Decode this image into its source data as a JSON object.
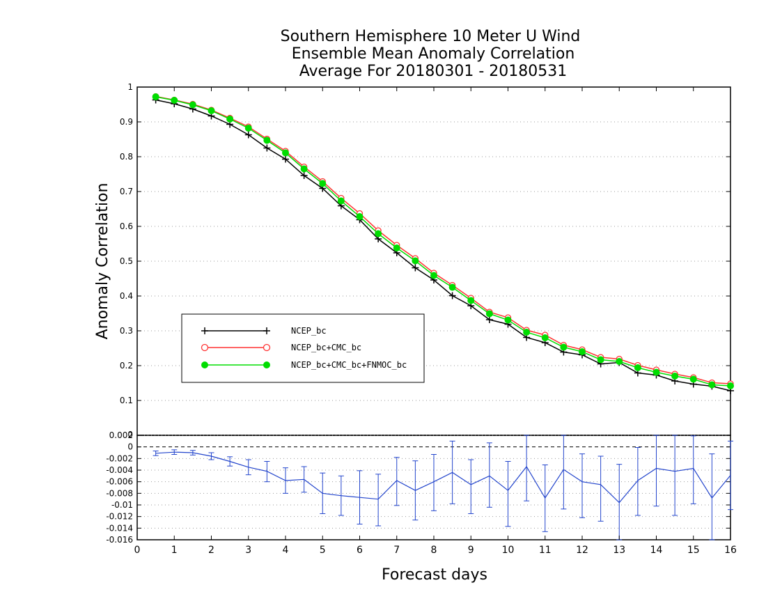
{
  "chart_data": [
    {
      "type": "line",
      "title": [
        "Southern Hemisphere 10 Meter U Wind",
        "Ensemble Mean Anomaly Correlation",
        "Average For 20180301 - 20180531"
      ],
      "xlabel": "Forecast days",
      "ylabel": "Anomaly Correlation",
      "xlim": [
        0,
        16
      ],
      "ylim": [
        0,
        1
      ],
      "yticks": [
        "0.1",
        "0.2",
        "0.3",
        "0.4",
        "0.5",
        "0.6",
        "0.7",
        "0.8",
        "0.9",
        "1"
      ],
      "grid": true,
      "legend_position": "center-left",
      "x": [
        0.5,
        1,
        1.5,
        2,
        2.5,
        3,
        3.5,
        4,
        4.5,
        5,
        5.5,
        6,
        6.5,
        7,
        7.5,
        8,
        8.5,
        9,
        9.5,
        10,
        10.5,
        11,
        11.5,
        12,
        12.5,
        13,
        13.5,
        14,
        14.5,
        15,
        15.5,
        16
      ],
      "series": [
        {
          "name": "NCEP_bc",
          "color": "#000000",
          "marker": "plus",
          "values": [
            0.963,
            0.952,
            0.937,
            0.917,
            0.893,
            0.863,
            0.825,
            0.793,
            0.746,
            0.709,
            0.659,
            0.619,
            0.564,
            0.524,
            0.481,
            0.446,
            0.401,
            0.372,
            0.332,
            0.319,
            0.281,
            0.266,
            0.239,
            0.231,
            0.205,
            0.209,
            0.179,
            0.173,
            0.156,
            0.147,
            0.141,
            0.128
          ]
        },
        {
          "name": "NCEP_bc+CMC_bc",
          "color": "#ff3333",
          "marker": "open-circle",
          "values": [
            0.973,
            0.963,
            0.951,
            0.934,
            0.911,
            0.886,
            0.851,
            0.816,
            0.771,
            0.729,
            0.681,
            0.637,
            0.588,
            0.546,
            0.508,
            0.466,
            0.431,
            0.394,
            0.354,
            0.338,
            0.302,
            0.288,
            0.259,
            0.246,
            0.224,
            0.219,
            0.201,
            0.188,
            0.176,
            0.166,
            0.151,
            0.148
          ]
        },
        {
          "name": "NCEP_bc+CMC_bc+FNMOC_bc",
          "color": "#00dd00",
          "marker": "filled-circle",
          "values": [
            0.972,
            0.962,
            0.949,
            0.932,
            0.908,
            0.882,
            0.847,
            0.811,
            0.765,
            0.723,
            0.673,
            0.628,
            0.579,
            0.538,
            0.501,
            0.459,
            0.425,
            0.387,
            0.349,
            0.331,
            0.296,
            0.28,
            0.253,
            0.24,
            0.217,
            0.212,
            0.194,
            0.181,
            0.17,
            0.161,
            0.145,
            0.142
          ]
        }
      ]
    },
    {
      "type": "line",
      "ylim": [
        -0.016,
        0.002
      ],
      "yticks": [
        "0.002",
        "0",
        "-0.002",
        "-0.004",
        "-0.006",
        "-0.008",
        "-0.01",
        "-0.012",
        "-0.014",
        "-0.016"
      ],
      "xticks": [
        "0",
        "1",
        "2",
        "3",
        "4",
        "5",
        "6",
        "7",
        "8",
        "9",
        "10",
        "11",
        "12",
        "13",
        "14",
        "15",
        "16"
      ],
      "grid": true,
      "color": "#2244cc",
      "x": [
        0.5,
        1,
        1.5,
        2,
        2.5,
        3,
        3.5,
        4,
        4.5,
        5,
        5.5,
        6,
        6.5,
        7,
        7.5,
        8,
        8.5,
        9,
        9.5,
        10,
        10.5,
        11,
        11.5,
        12,
        12.5,
        13,
        13.5,
        14,
        14.5,
        15,
        15.5,
        16
      ],
      "values": [
        -0.0011,
        -0.0009,
        -0.001,
        -0.0016,
        -0.0025,
        -0.0035,
        -0.0042,
        -0.0058,
        -0.0056,
        -0.008,
        -0.0084,
        -0.0087,
        -0.009,
        -0.0058,
        -0.0075,
        -0.006,
        -0.0044,
        -0.0065,
        -0.005,
        -0.0075,
        -0.0034,
        -0.0088,
        -0.0039,
        -0.006,
        -0.0065,
        -0.0096,
        -0.0058,
        -0.0037,
        -0.0042,
        -0.0037,
        -0.0088,
        -0.0049
      ],
      "err_low": [
        -0.0015,
        -0.0013,
        -0.0014,
        -0.0022,
        -0.0033,
        -0.0048,
        -0.006,
        -0.008,
        -0.0078,
        -0.0115,
        -0.0118,
        -0.0133,
        -0.0136,
        -0.0101,
        -0.0126,
        -0.011,
        -0.0098,
        -0.0115,
        -0.0104,
        -0.0137,
        -0.0093,
        -0.0146,
        -0.0107,
        -0.0122,
        -0.0128,
        -0.0163,
        -0.0118,
        -0.0102,
        -0.0118,
        -0.0098,
        -0.016,
        -0.0108
      ],
      "err_high": [
        -0.0007,
        -0.0005,
        -0.0006,
        -0.001,
        -0.0017,
        -0.0022,
        -0.0025,
        -0.0036,
        -0.0034,
        -0.0045,
        -0.005,
        -0.0041,
        -0.0047,
        -0.0018,
        -0.0024,
        -0.0013,
        0.001,
        -0.0022,
        0.0007,
        -0.0025,
        0.0033,
        -0.0031,
        0.0029,
        -0.0012,
        -0.0016,
        -0.003,
        -0.0001,
        0.0025,
        0.0032,
        0.0019,
        -0.0012,
        0.001
      ]
    }
  ]
}
